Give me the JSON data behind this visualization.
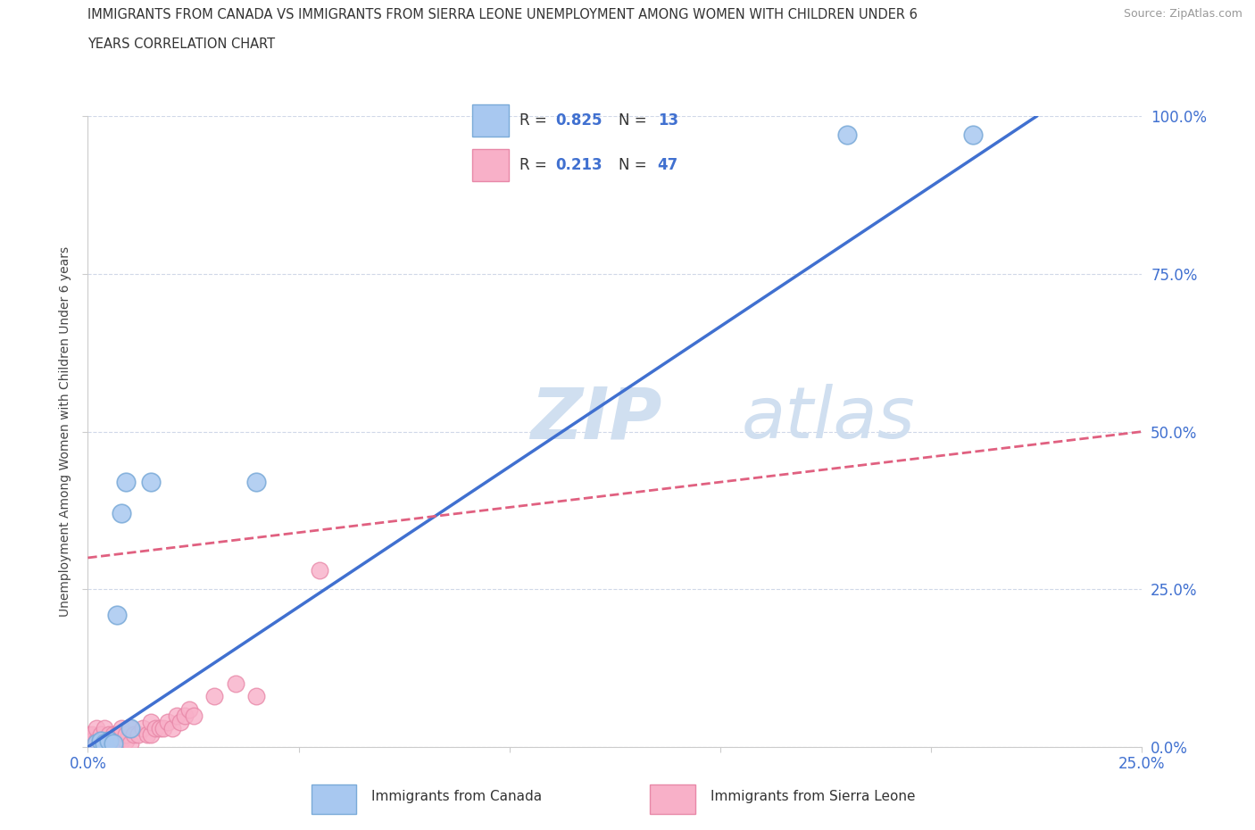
{
  "title_line1": "IMMIGRANTS FROM CANADA VS IMMIGRANTS FROM SIERRA LEONE UNEMPLOYMENT AMONG WOMEN WITH CHILDREN UNDER 6",
  "title_line2": "YEARS CORRELATION CHART",
  "source": "Source: ZipAtlas.com",
  "ylabel": "Unemployment Among Women with Children Under 6 years",
  "xlim": [
    0.0,
    0.25
  ],
  "ylim": [
    0.0,
    1.0
  ],
  "xticks": [
    0.0,
    0.05,
    0.1,
    0.15,
    0.2,
    0.25
  ],
  "xticklabels": [
    "0.0%",
    "",
    "",
    "",
    "",
    "25.0%"
  ],
  "yticks": [
    0.0,
    0.25,
    0.5,
    0.75,
    1.0
  ],
  "yticklabels_left": [
    "",
    "",
    "",
    "",
    ""
  ],
  "yticklabels_right": [
    "0.0%",
    "25.0%",
    "50.0%",
    "75.0%",
    "100.0%"
  ],
  "canada_color": "#a8c8f0",
  "canada_edge": "#7aaad8",
  "sierra_color": "#f8b0c8",
  "sierra_edge": "#e888a8",
  "canada_R": 0.825,
  "canada_N": 13,
  "sierra_R": 0.213,
  "sierra_N": 47,
  "canada_line_color": "#4070d0",
  "sierra_line_color": "#e06080",
  "watermark_zip": "ZIP",
  "watermark_atlas": "atlas",
  "watermark_color": "#d0dff0",
  "canada_x": [
    0.002,
    0.003,
    0.004,
    0.005,
    0.006,
    0.007,
    0.008,
    0.009,
    0.01,
    0.015,
    0.04,
    0.18,
    0.21
  ],
  "canada_y": [
    0.005,
    0.01,
    0.005,
    0.01,
    0.005,
    0.21,
    0.37,
    0.42,
    0.03,
    0.42,
    0.42,
    0.97,
    0.97
  ],
  "sierra_x": [
    0.0,
    0.0,
    0.0,
    0.001,
    0.001,
    0.001,
    0.002,
    0.002,
    0.002,
    0.003,
    0.003,
    0.004,
    0.004,
    0.004,
    0.005,
    0.005,
    0.005,
    0.006,
    0.006,
    0.007,
    0.007,
    0.008,
    0.008,
    0.009,
    0.009,
    0.01,
    0.01,
    0.011,
    0.012,
    0.013,
    0.014,
    0.015,
    0.015,
    0.016,
    0.017,
    0.018,
    0.019,
    0.02,
    0.021,
    0.022,
    0.023,
    0.024,
    0.025,
    0.03,
    0.035,
    0.04,
    0.055
  ],
  "sierra_y": [
    0.005,
    0.01,
    0.02,
    0.005,
    0.01,
    0.02,
    0.005,
    0.01,
    0.03,
    0.005,
    0.02,
    0.005,
    0.01,
    0.03,
    0.005,
    0.01,
    0.02,
    0.01,
    0.02,
    0.005,
    0.02,
    0.01,
    0.03,
    0.01,
    0.02,
    0.005,
    0.03,
    0.02,
    0.02,
    0.03,
    0.02,
    0.02,
    0.04,
    0.03,
    0.03,
    0.03,
    0.04,
    0.03,
    0.05,
    0.04,
    0.05,
    0.06,
    0.05,
    0.08,
    0.1,
    0.08,
    0.28
  ],
  "canada_line_x": [
    0.0,
    0.225
  ],
  "canada_line_y": [
    0.0,
    1.0
  ],
  "sierra_line_x": [
    0.0,
    0.25
  ],
  "sierra_line_y": [
    0.3,
    0.5
  ]
}
